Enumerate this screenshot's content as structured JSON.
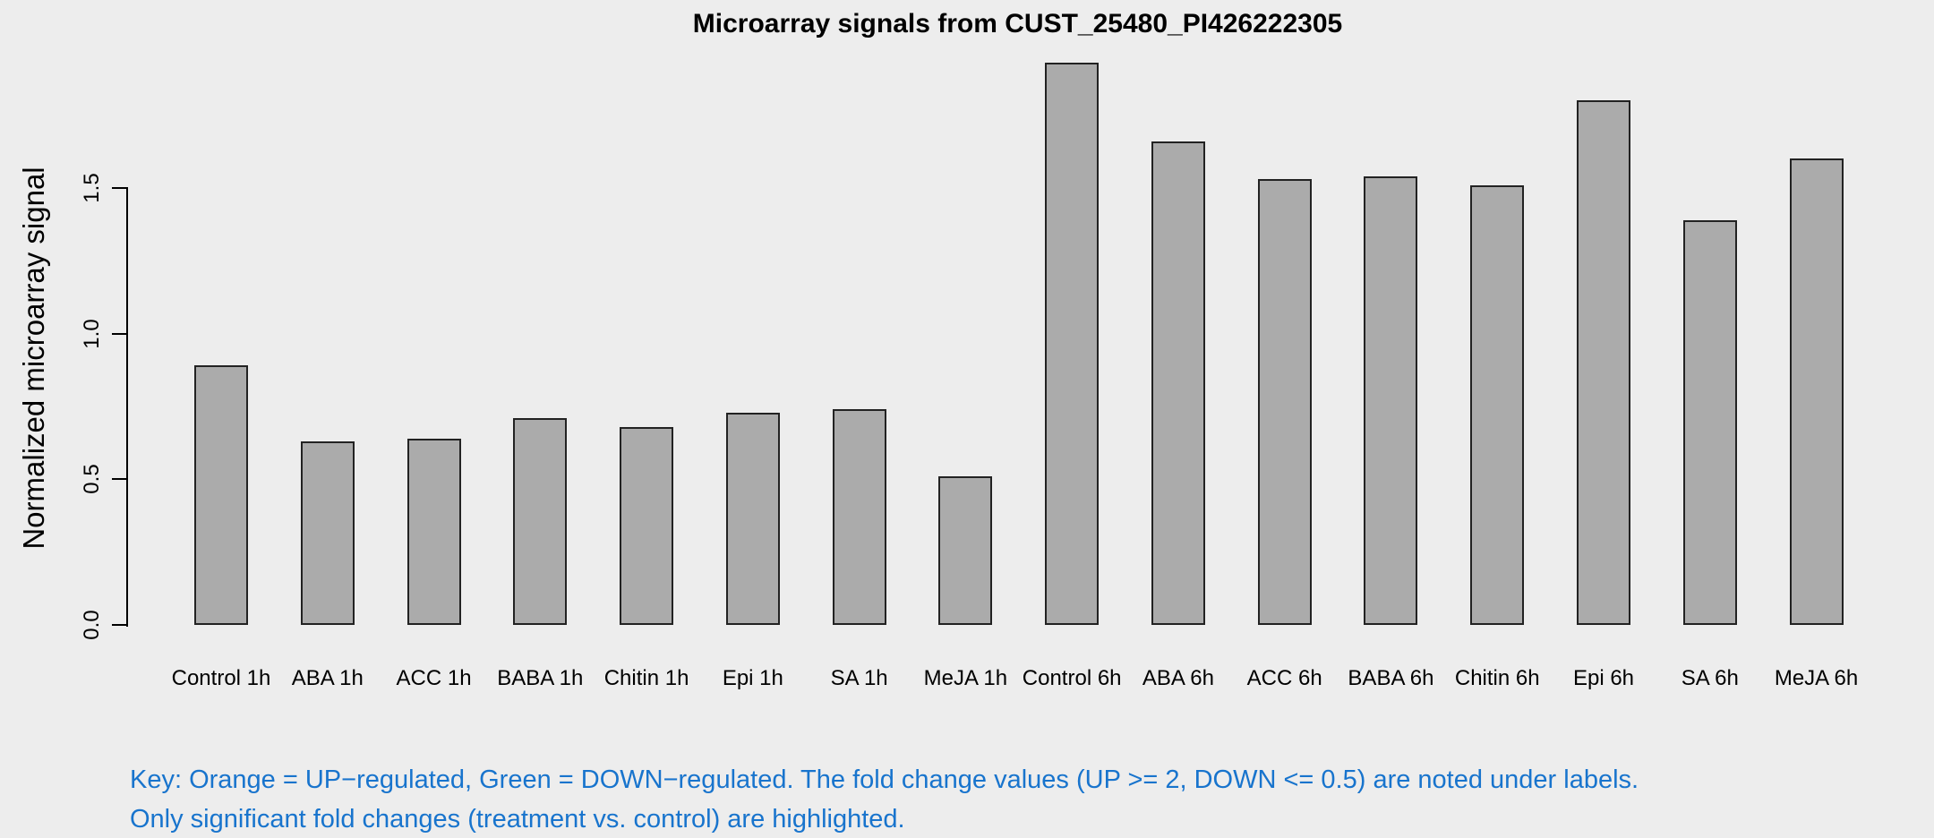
{
  "chart_data": {
    "type": "bar",
    "title": "Microarray signals from CUST_25480_PI426222305",
    "xlabel": "",
    "ylabel": "Normalized microarray signal",
    "categories": [
      "Control 1h",
      "ABA 1h",
      "ACC 1h",
      "BABA 1h",
      "Chitin 1h",
      "Epi 1h",
      "SA 1h",
      "MeJA 1h",
      "Control 6h",
      "ABA 6h",
      "ACC 6h",
      "BABA 6h",
      "Chitin 6h",
      "Epi 6h",
      "SA 6h",
      "MeJA 6h"
    ],
    "values": [
      0.89,
      0.63,
      0.64,
      0.71,
      0.68,
      0.73,
      0.74,
      0.51,
      1.93,
      1.66,
      1.53,
      1.54,
      1.51,
      1.8,
      1.39,
      1.6
    ],
    "ylim": [
      0,
      1.95
    ],
    "yticks": [
      0.0,
      0.5,
      1.0,
      1.5
    ],
    "ytick_labels": [
      "0.0",
      "0.5",
      "1.0",
      "1.5"
    ],
    "grid": false,
    "legend_position": "none",
    "bar_fill_color": "#ABABAB",
    "bar_border_color": "#222222",
    "background_color": "#EDEDED",
    "axis_color": "#000000"
  },
  "footnote": {
    "line1": "Key: Orange = UP−regulated, Green = DOWN−regulated. The fold change values (UP >= 2, DOWN <= 0.5) are noted under labels.",
    "line2": "Only significant fold changes (treatment vs. control) are highlighted.",
    "color": "#1874CD"
  }
}
